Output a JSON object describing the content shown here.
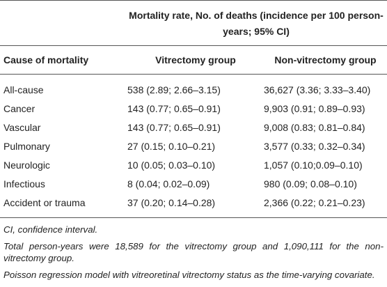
{
  "table": {
    "group_header": "Mortality rate, No. of deaths (incidence per 100 person-years; 95% CI)",
    "columns": [
      "Cause of mortality",
      "Vitrectomy group",
      "Non-vitrectomy group"
    ],
    "rows": [
      [
        "All-cause",
        "538 (2.89; 2.66–3.15)",
        "36,627 (3.36; 3.33–3.40)"
      ],
      [
        "Cancer",
        "143 (0.77; 0.65–0.91)",
        "9,903 (0.91; 0.89–0.93)"
      ],
      [
        "Vascular",
        "143 (0.77; 0.65–0.91)",
        "9,008 (0.83; 0.81–0.84)"
      ],
      [
        "Pulmonary",
        "27 (0.15; 0.10–0.21)",
        "3,577 (0.33; 0.32–0.34)"
      ],
      [
        "Neurologic",
        "10 (0.05; 0.03–0.10)",
        "1,057 (0.10;0.09–0.10)"
      ],
      [
        "Infectious",
        "8 (0.04; 0.02–0.09)",
        "980 (0.09; 0.08–0.10)"
      ],
      [
        "Accident or trauma",
        "37 (0.20; 0.14–0.28)",
        "2,366 (0.22; 0.21–0.23)"
      ]
    ],
    "footnotes": [
      "CI, confidence interval.",
      "Total person-years were 18,589 for the vitrectomy group and 1,090,111 for the non-vitrectomy group.",
      "Poisson regression model with vitreoretinal vitrectomy status as the time-varying covariate."
    ]
  }
}
